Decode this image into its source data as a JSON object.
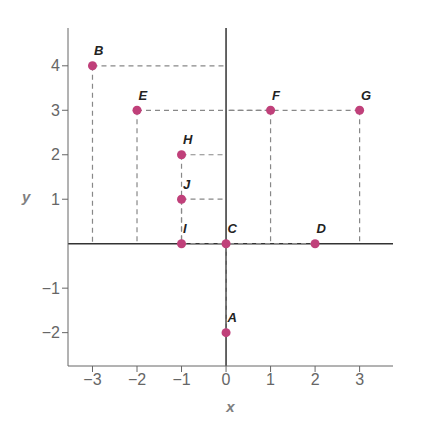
{
  "chart_data": {
    "type": "scatter",
    "x": [
      0,
      -3,
      0,
      2,
      -2,
      1,
      3,
      -1,
      -1,
      -1
    ],
    "values": [
      -2,
      4,
      0,
      0,
      3,
      3,
      3,
      2,
      0,
      1
    ],
    "labels": [
      "A",
      "B",
      "C",
      "D",
      "E",
      "F",
      "G",
      "H",
      "I",
      "J"
    ],
    "color": "#c0407a",
    "xlabel": "x",
    "ylabel": "y",
    "xlim": [
      -3.55,
      3.75
    ],
    "ylim": [
      -2.75,
      4.85
    ],
    "xticks": [
      {
        "value": -3,
        "label": "−3"
      },
      {
        "value": -2,
        "label": "−2"
      },
      {
        "value": -1,
        "label": "−1"
      },
      0,
      1,
      2,
      3
    ],
    "yticks": [
      {
        "value": -2,
        "label": "−2"
      },
      {
        "value": -1,
        "label": "−1"
      },
      1,
      2,
      3,
      4
    ],
    "grid": false
  }
}
